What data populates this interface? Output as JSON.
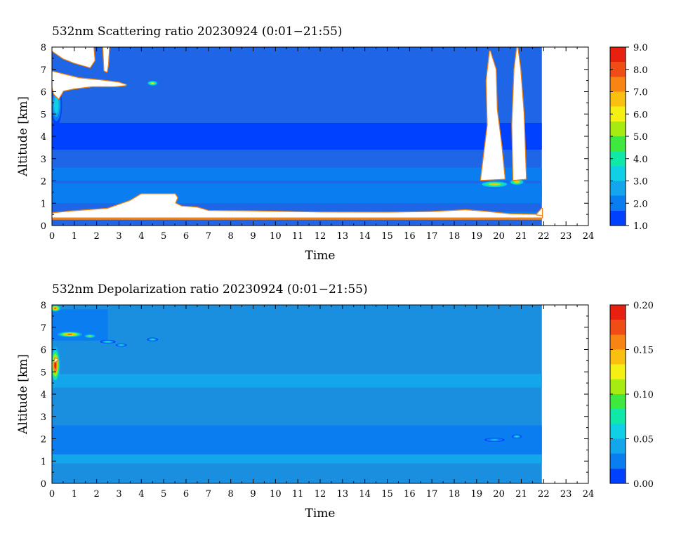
{
  "colors": {
    "background": "#ffffff",
    "axis": "#000000",
    "cloud_white": "#ffffff",
    "depol_base": "#1a8fe0"
  },
  "chart_data": [
    {
      "id": "scattering",
      "type": "heatmap",
      "title": "532nm Scattering ratio  20230924 (0:01−21:55)",
      "xlabel": "Time",
      "ylabel": "Altitude [km]",
      "xlim": [
        0,
        24
      ],
      "ylim": [
        0,
        8
      ],
      "xticks": [
        "0",
        "1",
        "2",
        "3",
        "4",
        "5",
        "6",
        "7",
        "8",
        "9",
        "10",
        "11",
        "12",
        "13",
        "14",
        "15",
        "16",
        "17",
        "18",
        "19",
        "20",
        "21",
        "22",
        "23",
        "24"
      ],
      "yticks": [
        "0",
        "1",
        "2",
        "3",
        "4",
        "5",
        "6",
        "7",
        "8"
      ],
      "data_end_time": 21.92,
      "grid": false,
      "colorbar": {
        "min": 1.0,
        "max": 9.0,
        "ticks": [
          "1.0",
          "2.0",
          "3.0",
          "4.0",
          "5.0",
          "6.0",
          "7.0",
          "8.0",
          "9.0"
        ],
        "colors": [
          "#0040ff",
          "#0a7df0",
          "#14a6ec",
          "#0fd0e6",
          "#10e8a8",
          "#3ee83e",
          "#a6ec10",
          "#f4f014",
          "#fac010",
          "#f88414",
          "#f04c16",
          "#e82010"
        ]
      },
      "background_color": "#1e66e6",
      "bands": [
        {
          "t0": 0,
          "t1": 21.92,
          "z0": 2.0,
          "z1": 2.6,
          "value": 1.75
        },
        {
          "t0": 0,
          "t1": 21.92,
          "z0": 1.0,
          "z1": 1.9,
          "value": 1.75
        },
        {
          "t0": 0,
          "t1": 21.92,
          "z0": 3.4,
          "z1": 4.6,
          "value": 1.55
        },
        {
          "t0": 0,
          "t1": 21.92,
          "z0": 0.45,
          "z1": 0.62,
          "value": 2.1
        },
        {
          "t0": 15.5,
          "t1": 21.92,
          "z0": 1.3,
          "z1": 1.75,
          "value": 2.3
        },
        {
          "t0": 0,
          "t1": 21.92,
          "z0": 0.26,
          "z1": 0.34,
          "value": 7.5
        }
      ],
      "features": [
        {
          "t": 0.2,
          "z": 5.4,
          "rt": 0.25,
          "rz": 0.9,
          "value": 3.5
        },
        {
          "t": 4.5,
          "z": 6.38,
          "rt": 0.25,
          "rz": 0.12,
          "value": 6.0
        },
        {
          "t": 19.8,
          "z": 1.85,
          "rt": 0.7,
          "rz": 0.15,
          "value": 6.5
        },
        {
          "t": 20.8,
          "z": 1.95,
          "rt": 0.35,
          "rz": 0.15,
          "value": 6.5
        },
        {
          "t": 2.8,
          "z": 6.3,
          "rt": 0.6,
          "rz": 0.12,
          "value": 5.5
        }
      ],
      "white_regions": [
        [
          [
            0.0,
            7.85
          ],
          [
            0.5,
            7.5
          ],
          [
            1.0,
            7.3
          ],
          [
            1.7,
            7.1
          ],
          [
            1.9,
            7.4
          ],
          [
            1.85,
            8.0
          ],
          [
            0.0,
            8.0
          ]
        ],
        [
          [
            0.0,
            6.9
          ],
          [
            0.6,
            6.75
          ],
          [
            1.2,
            6.6
          ],
          [
            2.2,
            6.5
          ],
          [
            3.0,
            6.4
          ],
          [
            3.3,
            6.3
          ],
          [
            2.8,
            6.25
          ],
          [
            1.8,
            6.25
          ],
          [
            1.0,
            6.15
          ],
          [
            0.5,
            6.05
          ],
          [
            0.3,
            5.7
          ],
          [
            0.1,
            5.9
          ],
          [
            0.0,
            6.3
          ]
        ],
        [
          [
            2.3,
            8.0
          ],
          [
            2.35,
            6.95
          ],
          [
            2.45,
            6.9
          ],
          [
            2.5,
            7.2
          ],
          [
            2.55,
            8.0
          ]
        ],
        [
          [
            19.2,
            2.05
          ],
          [
            19.5,
            4.5
          ],
          [
            19.45,
            6.5
          ],
          [
            19.6,
            7.8
          ],
          [
            19.85,
            7.0
          ],
          [
            19.9,
            5.2
          ],
          [
            20.1,
            3.6
          ],
          [
            20.25,
            2.1
          ]
        ],
        [
          [
            20.65,
            2.05
          ],
          [
            20.6,
            4.5
          ],
          [
            20.7,
            7.0
          ],
          [
            20.82,
            8.0
          ],
          [
            20.95,
            7.0
          ],
          [
            21.1,
            5.0
          ],
          [
            21.2,
            2.1
          ]
        ],
        [
          [
            0.0,
            0.37
          ],
          [
            0.0,
            0.54
          ],
          [
            0.8,
            0.62
          ],
          [
            2.5,
            0.75
          ],
          [
            3.5,
            1.1
          ],
          [
            4.0,
            1.4
          ],
          [
            5.5,
            1.4
          ],
          [
            5.6,
            1.25
          ],
          [
            5.5,
            1.0
          ],
          [
            5.8,
            0.85
          ],
          [
            6.5,
            0.8
          ],
          [
            7.0,
            0.65
          ],
          [
            9.0,
            0.63
          ],
          [
            12.0,
            0.58
          ],
          [
            15.0,
            0.57
          ],
          [
            17.0,
            0.6
          ],
          [
            18.5,
            0.68
          ],
          [
            19.3,
            0.62
          ],
          [
            20.5,
            0.5
          ],
          [
            21.92,
            0.47
          ],
          [
            21.92,
            0.37
          ]
        ],
        [
          [
            21.7,
            0.5
          ],
          [
            21.92,
            0.75
          ],
          [
            21.92,
            0.48
          ]
        ]
      ]
    },
    {
      "id": "depolarization",
      "type": "heatmap",
      "title": "532nm Depolarization ratio  20230924 (0:01−21:55)",
      "xlabel": "Time",
      "ylabel": "Altitude [km]",
      "xlim": [
        0,
        24
      ],
      "ylim": [
        0,
        8
      ],
      "xticks": [
        "0",
        "1",
        "2",
        "3",
        "4",
        "5",
        "6",
        "7",
        "8",
        "9",
        "10",
        "11",
        "12",
        "13",
        "14",
        "15",
        "16",
        "17",
        "18",
        "19",
        "20",
        "21",
        "22",
        "23",
        "24"
      ],
      "yticks": [
        "0",
        "1",
        "2",
        "3",
        "4",
        "5",
        "6",
        "7",
        "8"
      ],
      "data_end_time": 21.92,
      "grid": false,
      "colorbar": {
        "min": 0.0,
        "max": 0.2,
        "ticks": [
          "0.00",
          "0.05",
          "0.10",
          "0.15",
          "0.20"
        ],
        "colors": [
          "#0040ff",
          "#0a7df0",
          "#14a6ec",
          "#0fd0e6",
          "#10e8a8",
          "#3ee83e",
          "#a6ec10",
          "#f4f014",
          "#fac010",
          "#f88414",
          "#f04c16",
          "#e82010"
        ]
      },
      "background_color": "#1a8fe0",
      "bands": [
        {
          "t0": 0,
          "t1": 21.92,
          "z0": 1.3,
          "z1": 2.6,
          "value": 0.025
        },
        {
          "t0": 0,
          "t1": 21.92,
          "z0": 0.9,
          "z1": 1.3,
          "value": 0.035
        },
        {
          "t0": 0,
          "t1": 21.92,
          "z0": 4.3,
          "z1": 4.9,
          "value": 0.035
        },
        {
          "t0": 0,
          "t1": 2.5,
          "z0": 6.4,
          "z1": 7.8,
          "value": 0.02
        }
      ],
      "features": [
        {
          "t": 0.15,
          "z": 5.3,
          "rt": 0.22,
          "rz": 0.85,
          "value": 0.19
        },
        {
          "t": 0.8,
          "z": 6.68,
          "rt": 0.55,
          "rz": 0.12,
          "value": 0.18
        },
        {
          "t": 0.15,
          "z": 7.85,
          "rt": 0.25,
          "rz": 0.15,
          "value": 0.17
        },
        {
          "t": 1.7,
          "z": 6.6,
          "rt": 0.3,
          "rz": 0.1,
          "value": 0.1
        },
        {
          "t": 2.5,
          "z": 6.35,
          "rt": 0.35,
          "rz": 0.08,
          "value": 0.07
        },
        {
          "t": 3.1,
          "z": 6.2,
          "rt": 0.25,
          "rz": 0.07,
          "value": 0.08
        },
        {
          "t": 4.5,
          "z": 6.45,
          "rt": 0.25,
          "rz": 0.08,
          "value": 0.07
        },
        {
          "t": 20.8,
          "z": 2.1,
          "rt": 0.22,
          "rz": 0.09,
          "value": 0.07
        },
        {
          "t": 19.8,
          "z": 1.95,
          "rt": 0.45,
          "rz": 0.09,
          "value": 0.05
        }
      ],
      "white_regions": [
        [
          [
            0.12,
            5.45
          ],
          [
            0.2,
            5.5
          ],
          [
            0.25,
            5.55
          ],
          [
            0.16,
            5.6
          ]
        ]
      ]
    }
  ]
}
